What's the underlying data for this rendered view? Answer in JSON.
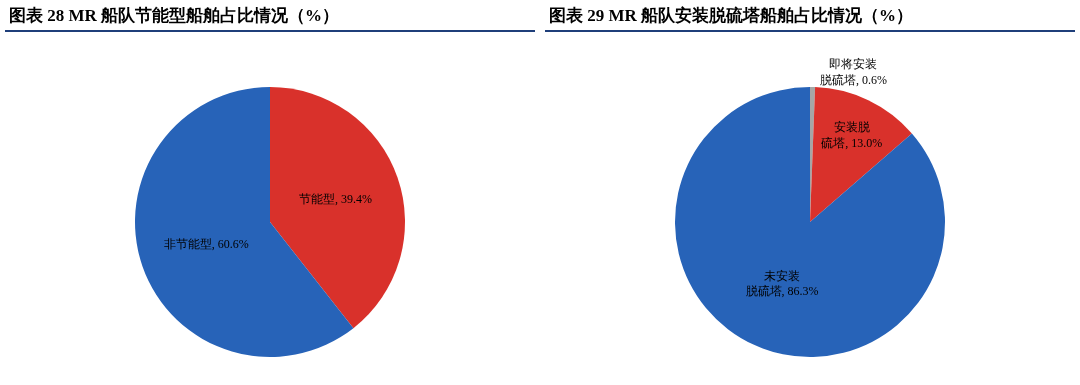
{
  "chart_data": [
    {
      "type": "pie",
      "title": "图表 28 MR 船队节能型船舶占比情况（%）",
      "categories": [
        "节能型",
        "非节能型"
      ],
      "values": [
        39.4,
        60.6
      ],
      "colors": [
        "#d9312b",
        "#2763b8"
      ],
      "value_labels": [
        "39.4%",
        "60.6%"
      ],
      "legend": false
    },
    {
      "type": "pie",
      "title": "图表 29 MR 船队安装脱硫塔船舶占比情况（%）",
      "categories": [
        "即将安装脱硫塔",
        "安装脱硫塔",
        "未安装脱硫塔"
      ],
      "values": [
        0.6,
        13.0,
        86.3
      ],
      "colors": [
        "#a6a6a6",
        "#d9312b",
        "#2763b8"
      ],
      "value_labels": [
        "0.6%",
        "13.0%",
        "86.3%"
      ],
      "legend": false
    }
  ]
}
